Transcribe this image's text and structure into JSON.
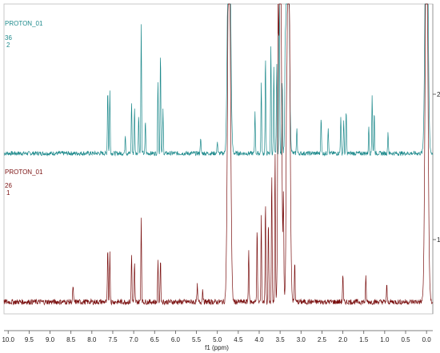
{
  "chart_data": {
    "type": "line",
    "title": "",
    "xlabel": "f1 (ppm)",
    "ylabel": "",
    "xlim": [
      10.1,
      -0.15
    ],
    "x_ticks": [
      "10.0",
      "9.5",
      "9.0",
      "8.5",
      "8.0",
      "7.5",
      "7.0",
      "6.5",
      "6.0",
      "5.5",
      "5.0",
      "4.5",
      "4.0",
      "3.5",
      "3.0",
      "2.5",
      "2.0",
      "1.5",
      "1.0",
      "0.5",
      "0.0"
    ],
    "grid": false,
    "legend": "none",
    "series": [
      {
        "name": "PROTON_01",
        "sample": "36",
        "index": "2",
        "offset_label": "2",
        "color": "#1e8a8c",
        "peaks": [
          {
            "ppm": 7.62,
            "height": 0.6
          },
          {
            "ppm": 7.57,
            "height": 0.58
          },
          {
            "ppm": 7.2,
            "height": 0.18
          },
          {
            "ppm": 7.05,
            "height": 0.48
          },
          {
            "ppm": 6.98,
            "height": 0.42
          },
          {
            "ppm": 6.88,
            "height": 0.35
          },
          {
            "ppm": 6.82,
            "height": 1.2
          },
          {
            "ppm": 6.72,
            "height": 0.3
          },
          {
            "ppm": 6.42,
            "height": 0.7
          },
          {
            "ppm": 6.36,
            "height": 0.95
          },
          {
            "ppm": 6.3,
            "height": 0.4
          },
          {
            "ppm": 5.4,
            "height": 0.15
          },
          {
            "ppm": 5.0,
            "height": 0.12
          },
          {
            "ppm": 4.72,
            "height": 3.0
          },
          {
            "ppm": 4.1,
            "height": 0.4
          },
          {
            "ppm": 3.95,
            "height": 0.65
          },
          {
            "ppm": 3.85,
            "height": 0.9
          },
          {
            "ppm": 3.72,
            "height": 1.0
          },
          {
            "ppm": 3.65,
            "height": 0.8
          },
          {
            "ppm": 3.58,
            "height": 0.85
          },
          {
            "ppm": 3.52,
            "height": 1.8
          },
          {
            "ppm": 3.45,
            "height": 0.7
          },
          {
            "ppm": 3.38,
            "height": 0.55
          },
          {
            "ppm": 3.32,
            "height": 3.0
          },
          {
            "ppm": 3.1,
            "height": 0.25
          },
          {
            "ppm": 2.52,
            "height": 0.35
          },
          {
            "ppm": 2.35,
            "height": 0.25
          },
          {
            "ppm": 2.05,
            "height": 0.35
          },
          {
            "ppm": 1.98,
            "height": 0.3
          },
          {
            "ppm": 1.92,
            "height": 0.4
          },
          {
            "ppm": 1.38,
            "height": 0.25
          },
          {
            "ppm": 1.3,
            "height": 0.55
          },
          {
            "ppm": 1.25,
            "height": 0.4
          },
          {
            "ppm": 0.92,
            "height": 0.2
          },
          {
            "ppm": 0.0,
            "height": 3.0
          }
        ]
      },
      {
        "name": "PROTON_01",
        "sample": "26",
        "index": "1",
        "offset_label": "1",
        "color": "#7a1010",
        "peaks": [
          {
            "ppm": 8.45,
            "height": 0.12
          },
          {
            "ppm": 7.62,
            "height": 0.38
          },
          {
            "ppm": 7.57,
            "height": 0.36
          },
          {
            "ppm": 7.05,
            "height": 0.35
          },
          {
            "ppm": 6.98,
            "height": 0.28
          },
          {
            "ppm": 6.82,
            "height": 0.62
          },
          {
            "ppm": 6.42,
            "height": 0.3
          },
          {
            "ppm": 6.36,
            "height": 0.32
          },
          {
            "ppm": 5.48,
            "height": 0.12
          },
          {
            "ppm": 5.35,
            "height": 0.1
          },
          {
            "ppm": 4.72,
            "height": 3.0
          },
          {
            "ppm": 4.25,
            "height": 0.4
          },
          {
            "ppm": 4.05,
            "height": 0.55
          },
          {
            "ppm": 3.95,
            "height": 0.62
          },
          {
            "ppm": 3.85,
            "height": 0.75
          },
          {
            "ppm": 3.78,
            "height": 0.6
          },
          {
            "ppm": 3.7,
            "height": 0.95
          },
          {
            "ppm": 3.62,
            "height": 1.1
          },
          {
            "ppm": 3.55,
            "height": 1.3
          },
          {
            "ppm": 3.5,
            "height": 3.0
          },
          {
            "ppm": 3.42,
            "height": 0.7
          },
          {
            "ppm": 3.35,
            "height": 0.55
          },
          {
            "ppm": 3.3,
            "height": 3.0
          },
          {
            "ppm": 3.15,
            "height": 0.3
          },
          {
            "ppm": 2.0,
            "height": 0.2
          },
          {
            "ppm": 1.45,
            "height": 0.18
          },
          {
            "ppm": 0.95,
            "height": 0.12
          },
          {
            "ppm": 0.0,
            "height": 3.0
          }
        ]
      }
    ]
  }
}
